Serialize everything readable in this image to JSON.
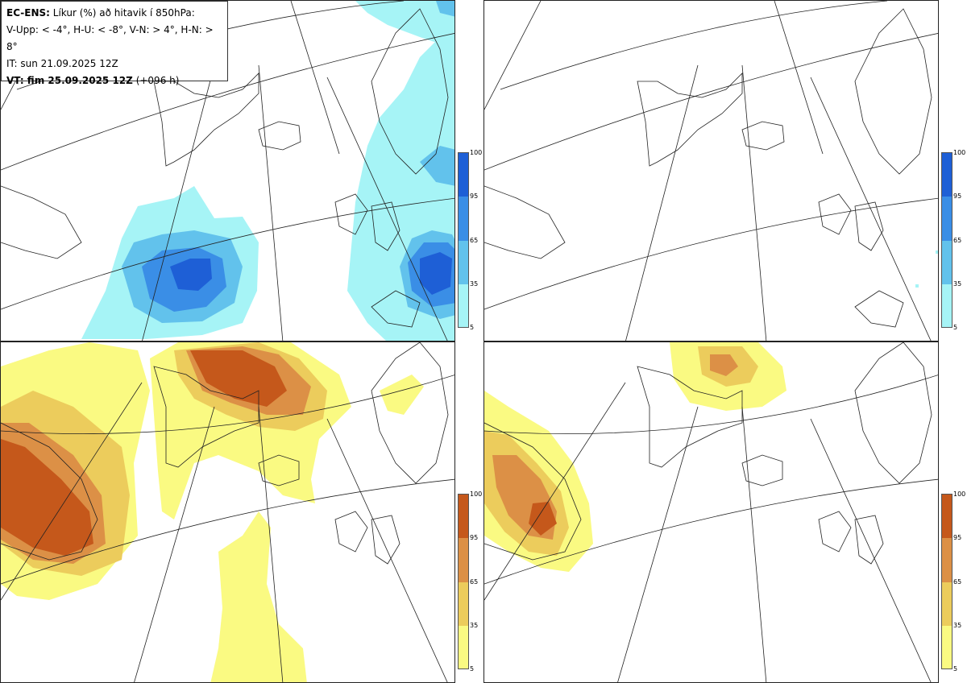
{
  "header": {
    "line1_bold": "EC-ENS:",
    "line1_rest": " Líkur (%) að hitavik í 850hPa:",
    "line2": "V-Upp: < -4°, H-U: < -8°, V-N: > 4°, H-N: > 8°",
    "line3": "IT: sun 21.09.2025 12Z",
    "line4_bold": "VT: fim 25.09.2025 12Z",
    "line4_rest": " (+096 h)"
  },
  "colorbars": {
    "cold": {
      "labels": [
        "100",
        "95",
        "65",
        "35",
        "5"
      ],
      "colors": [
        "#1e5fd6",
        "#3a8ee6",
        "#62c2ec",
        "#a6f4f6"
      ]
    },
    "warm": {
      "labels": [
        "100",
        "95",
        "65",
        "35",
        "5"
      ],
      "colors": [
        "#c5581b",
        "#dc9046",
        "#eccc5c",
        "#fafa82"
      ]
    }
  },
  "panels": [
    {
      "id": "upper-left",
      "field": "V-Upp",
      "scheme": "cold"
    },
    {
      "id": "upper-right",
      "field": "H-U",
      "scheme": "cold"
    },
    {
      "id": "lower-left",
      "field": "V-N",
      "scheme": "warm"
    },
    {
      "id": "lower-right",
      "field": "H-N",
      "scheme": "warm"
    }
  ]
}
